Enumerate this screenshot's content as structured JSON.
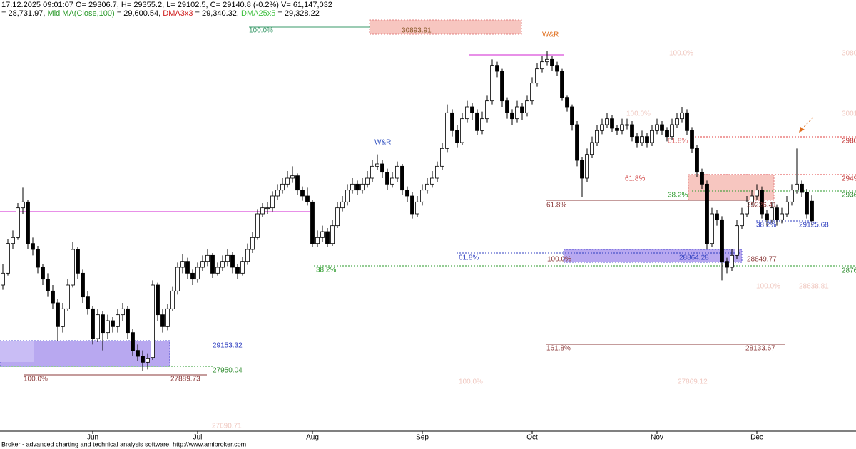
{
  "header": {
    "line1": "17.12.2025 09:01:07 O= 29306.7, H= 29355.2, L= 29102.5, C= 29140.8 (-0.2%) V= 61,147,032",
    "line2": [
      "= 28,731.97, ",
      "Mid MA(Close,100)",
      " = 29,600.54, ",
      "DMA3x3",
      " = 29,340.32, ",
      "DMA25x5",
      " = 29,328.22"
    ]
  },
  "chart_data": {
    "type": "candlestick",
    "up_color": "#ffffff",
    "down_color": "#000000",
    "edge_color": "#000000",
    "ylim": [
      27370,
      31000
    ],
    "categories": [
      null,
      null,
      null,
      null,
      null,
      null,
      null,
      null,
      null,
      null,
      null,
      null,
      null,
      null,
      null,
      null,
      null,
      null,
      "Jun",
      null,
      null,
      null,
      null,
      null,
      null,
      null,
      null,
      null,
      null,
      null,
      null,
      null,
      null,
      null,
      null,
      null,
      null,
      null,
      null,
      "Jul",
      null,
      null,
      null,
      null,
      null,
      null,
      null,
      null,
      null,
      null,
      null,
      null,
      null,
      null,
      null,
      null,
      null,
      null,
      null,
      null,
      null,
      null,
      "Aug",
      null,
      null,
      null,
      null,
      null,
      null,
      null,
      null,
      null,
      null,
      null,
      null,
      null,
      null,
      null,
      null,
      null,
      null,
      null,
      null,
      null,
      "Sep",
      null,
      null,
      null,
      null,
      null,
      null,
      null,
      null,
      null,
      null,
      null,
      null,
      null,
      null,
      null,
      null,
      null,
      null,
      null,
      null,
      null,
      "Oct",
      null,
      null,
      null,
      null,
      null,
      null,
      null,
      null,
      null,
      null,
      null,
      null,
      null,
      null,
      null,
      null,
      null,
      null,
      null,
      null,
      null,
      null,
      null,
      null,
      "Nov",
      null,
      null,
      null,
      null,
      null,
      null,
      null,
      null,
      null,
      null,
      null,
      null,
      null,
      null,
      null,
      null,
      null,
      null,
      null,
      "Dec",
      null,
      null,
      null,
      null,
      null,
      null,
      null,
      null,
      null,
      null,
      null
    ],
    "ohlc": [
      [
        28600,
        28780,
        28560,
        28700
      ],
      [
        28700,
        28990,
        28680,
        28950
      ],
      [
        28950,
        29060,
        28900,
        29000
      ],
      [
        29000,
        29290,
        28980,
        29250
      ],
      [
        29250,
        29420,
        29200,
        29300
      ],
      [
        29300,
        29320,
        28900,
        28950
      ],
      [
        28950,
        29000,
        28850,
        28900
      ],
      [
        28900,
        28930,
        28700,
        28750
      ],
      [
        28750,
        28780,
        28600,
        28650
      ],
      [
        28650,
        28700,
        28500,
        28550
      ],
      [
        28550,
        28600,
        28400,
        28450
      ],
      [
        28450,
        28480,
        28130,
        28250
      ],
      [
        28250,
        28450,
        28200,
        28400
      ],
      [
        28400,
        28650,
        28380,
        28600
      ],
      [
        28600,
        28960,
        28580,
        28900
      ],
      [
        28900,
        28920,
        28650,
        28700
      ],
      [
        28700,
        28730,
        28450,
        28500
      ],
      [
        28500,
        28550,
        28350,
        28400
      ],
      [
        28400,
        28420,
        28100,
        28150
      ],
      [
        28150,
        28400,
        28120,
        28350
      ],
      [
        28350,
        28380,
        28050,
        28200
      ],
      [
        28200,
        28350,
        28150,
        28300
      ],
      [
        28300,
        28330,
        28200,
        28250
      ],
      [
        28250,
        28400,
        28200,
        28350
      ],
      [
        28350,
        28450,
        28300,
        28400
      ],
      [
        28400,
        28420,
        28150,
        28200
      ],
      [
        28200,
        28230,
        28000,
        28050
      ],
      [
        28050,
        28100,
        27960,
        28000
      ],
      [
        28000,
        28050,
        27880,
        27950
      ],
      [
        27950,
        28020,
        27890,
        27980
      ],
      [
        27990,
        28640,
        27970,
        28600
      ],
      [
        28600,
        28620,
        28300,
        28350
      ],
      [
        28350,
        28400,
        28200,
        28250
      ],
      [
        28250,
        28440,
        28220,
        28400
      ],
      [
        28400,
        28590,
        28380,
        28550
      ],
      [
        28550,
        28790,
        28520,
        28750
      ],
      [
        28750,
        28860,
        28700,
        28800
      ],
      [
        28800,
        28830,
        28650,
        28700
      ],
      [
        28700,
        28730,
        28600,
        28650
      ],
      [
        28650,
        28790,
        28620,
        28750
      ],
      [
        28750,
        28850,
        28720,
        28800
      ],
      [
        28800,
        28900,
        28760,
        28850
      ],
      [
        28850,
        28870,
        28660,
        28700
      ],
      [
        28700,
        28790,
        28680,
        28750
      ],
      [
        28750,
        28850,
        28720,
        28800
      ],
      [
        28800,
        28900,
        28760,
        28850
      ],
      [
        28850,
        28880,
        28700,
        28750
      ],
      [
        28750,
        28780,
        28650,
        28700
      ],
      [
        28700,
        28840,
        28680,
        28800
      ],
      [
        28800,
        28950,
        28770,
        28900
      ],
      [
        28900,
        29050,
        28870,
        29000
      ],
      [
        29000,
        29240,
        28980,
        29200
      ],
      [
        29200,
        29290,
        29170,
        29250
      ],
      [
        29250,
        29300,
        29200,
        29250
      ],
      [
        29250,
        29390,
        29220,
        29350
      ],
      [
        29350,
        29450,
        29320,
        29400
      ],
      [
        29400,
        29500,
        29370,
        29450
      ],
      [
        29450,
        29560,
        29420,
        29500
      ],
      [
        29500,
        29600,
        29460,
        29520
      ],
      [
        29520,
        29540,
        29360,
        29400
      ],
      [
        29400,
        29430,
        29310,
        29350
      ],
      [
        29350,
        29420,
        29270,
        29300
      ],
      [
        29300,
        29320,
        28920,
        28950
      ],
      [
        28950,
        29060,
        28920,
        29000
      ],
      [
        29000,
        29100,
        28960,
        29050
      ],
      [
        29050,
        29080,
        28920,
        28950
      ],
      [
        28950,
        29150,
        28930,
        29100
      ],
      [
        29100,
        29300,
        29080,
        29250
      ],
      [
        29250,
        29350,
        29220,
        29300
      ],
      [
        29300,
        29450,
        29270,
        29400
      ],
      [
        29400,
        29500,
        29370,
        29450
      ],
      [
        29450,
        29480,
        29360,
        29400
      ],
      [
        29400,
        29500,
        29370,
        29450
      ],
      [
        29450,
        29560,
        29420,
        29500
      ],
      [
        29500,
        29650,
        29470,
        29600
      ],
      [
        29600,
        29700,
        29570,
        29620
      ],
      [
        29620,
        29650,
        29500,
        29550
      ],
      [
        29550,
        29580,
        29400,
        29450
      ],
      [
        29450,
        29550,
        29420,
        29500
      ],
      [
        29500,
        29640,
        29470,
        29600
      ],
      [
        29600,
        29620,
        29360,
        29400
      ],
      [
        29400,
        29430,
        29300,
        29350
      ],
      [
        29350,
        29380,
        29160,
        29200
      ],
      [
        29200,
        29350,
        29170,
        29300
      ],
      [
        29300,
        29450,
        29270,
        29400
      ],
      [
        29400,
        29500,
        29370,
        29450
      ],
      [
        29450,
        29560,
        29420,
        29500
      ],
      [
        29500,
        29640,
        29470,
        29600
      ],
      [
        29600,
        29800,
        29570,
        29750
      ],
      [
        29750,
        30120,
        29720,
        30050
      ],
      [
        30050,
        30080,
        29850,
        29900
      ],
      [
        29900,
        29950,
        29760,
        29800
      ],
      [
        29800,
        30050,
        29780,
        30000
      ],
      [
        30000,
        30150,
        29970,
        30100
      ],
      [
        30100,
        30130,
        29990,
        30050
      ],
      [
        30050,
        30080,
        29860,
        29900
      ],
      [
        29900,
        30060,
        29870,
        30000
      ],
      [
        30000,
        30200,
        29970,
        30150
      ],
      [
        30150,
        30500,
        30120,
        30450
      ],
      [
        30450,
        30480,
        30350,
        30400
      ],
      [
        30400,
        30420,
        30100,
        30150
      ],
      [
        30150,
        30180,
        30000,
        30050
      ],
      [
        30050,
        30080,
        29950,
        30000
      ],
      [
        30000,
        30150,
        29970,
        30100
      ],
      [
        30100,
        30130,
        29990,
        30050
      ],
      [
        30050,
        30200,
        30020,
        30150
      ],
      [
        30150,
        30350,
        30120,
        30300
      ],
      [
        30300,
        30470,
        30270,
        30420
      ],
      [
        30420,
        30530,
        30390,
        30480
      ],
      [
        30480,
        30570,
        30450,
        30500
      ],
      [
        30500,
        30530,
        30400,
        30450
      ],
      [
        30450,
        30480,
        30360,
        30400
      ],
      [
        30400,
        30420,
        30150,
        30180
      ],
      [
        30180,
        30200,
        30060,
        30100
      ],
      [
        30100,
        30120,
        29900,
        29950
      ],
      [
        29950,
        29980,
        29600,
        29650
      ],
      [
        29650,
        29680,
        29340,
        29500
      ],
      [
        29500,
        29750,
        29470,
        29700
      ],
      [
        29700,
        29850,
        29670,
        29800
      ],
      [
        29800,
        29950,
        29770,
        29900
      ],
      [
        29900,
        30000,
        29870,
        29950
      ],
      [
        29950,
        30050,
        29920,
        30000
      ],
      [
        30000,
        30030,
        29890,
        29920
      ],
      [
        29920,
        29950,
        29860,
        29900
      ],
      [
        29900,
        30000,
        29870,
        29950
      ],
      [
        29950,
        30000,
        29910,
        29950
      ],
      [
        29950,
        29980,
        29810,
        29850
      ],
      [
        29850,
        29880,
        29760,
        29800
      ],
      [
        29800,
        29900,
        29770,
        29850
      ],
      [
        29850,
        29880,
        29760,
        29800
      ],
      [
        29800,
        29950,
        29770,
        29900
      ],
      [
        29900,
        30000,
        29870,
        29950
      ],
      [
        29950,
        29980,
        29860,
        29900
      ],
      [
        29900,
        29930,
        29810,
        29850
      ],
      [
        29850,
        30000,
        29820,
        29950
      ],
      [
        29950,
        30050,
        29920,
        30000
      ],
      [
        30000,
        30100,
        29970,
        30050
      ],
      [
        30050,
        30080,
        29860,
        29900
      ],
      [
        29900,
        29930,
        29710,
        29750
      ],
      [
        29750,
        29780,
        29510,
        29550
      ],
      [
        29550,
        29580,
        29410,
        29450
      ],
      [
        29450,
        29480,
        28900,
        28950
      ],
      [
        28950,
        29250,
        28920,
        29200
      ],
      [
        29200,
        29230,
        29100,
        29150
      ],
      [
        29150,
        29180,
        28640,
        28800
      ],
      [
        28800,
        28830,
        28700,
        28750
      ],
      [
        28750,
        28900,
        28720,
        28850
      ],
      [
        28850,
        29150,
        28820,
        29100
      ],
      [
        29100,
        29250,
        29070,
        29200
      ],
      [
        29200,
        29350,
        29170,
        29300
      ],
      [
        29300,
        29400,
        29270,
        29350
      ],
      [
        29350,
        29450,
        29320,
        29400
      ],
      [
        29400,
        29430,
        29160,
        29200
      ],
      [
        29200,
        29230,
        29100,
        29150
      ],
      [
        29150,
        29300,
        29120,
        29250
      ],
      [
        29250,
        29280,
        29100,
        29150
      ],
      [
        29150,
        29250,
        29120,
        29200
      ],
      [
        29200,
        29350,
        29170,
        29300
      ],
      [
        29300,
        29450,
        29270,
        29400
      ],
      [
        29400,
        29750,
        29370,
        29450
      ],
      [
        29450,
        29480,
        29340,
        29380
      ],
      [
        29380,
        29410,
        29160,
        29200
      ],
      [
        29306.7,
        29355.2,
        29102.5,
        29140.8
      ]
    ],
    "annotations": [
      "100.0%",
      "30893.91",
      "W&R",
      "W&R",
      "100.0%",
      "3080",
      "100.0%",
      "3001",
      "61.8%",
      "2980",
      "61.8%",
      "2949",
      "38.2%",
      "2936",
      "61.8%",
      "29226.41",
      "38.2%",
      "29125.68",
      "61.8%",
      "100.0%",
      "28864.28",
      "28849.77",
      "38.2%",
      "2876",
      "100.0%",
      "28638.81",
      "29153.32",
      "161.8%",
      "28133.67",
      "27950.04",
      "100.0%",
      "27889.73",
      "100.0%",
      "27869.12",
      "27690.71"
    ]
  },
  "footer": "Broker - advanced charting and technical analysis software. http://www.amibroker.com"
}
